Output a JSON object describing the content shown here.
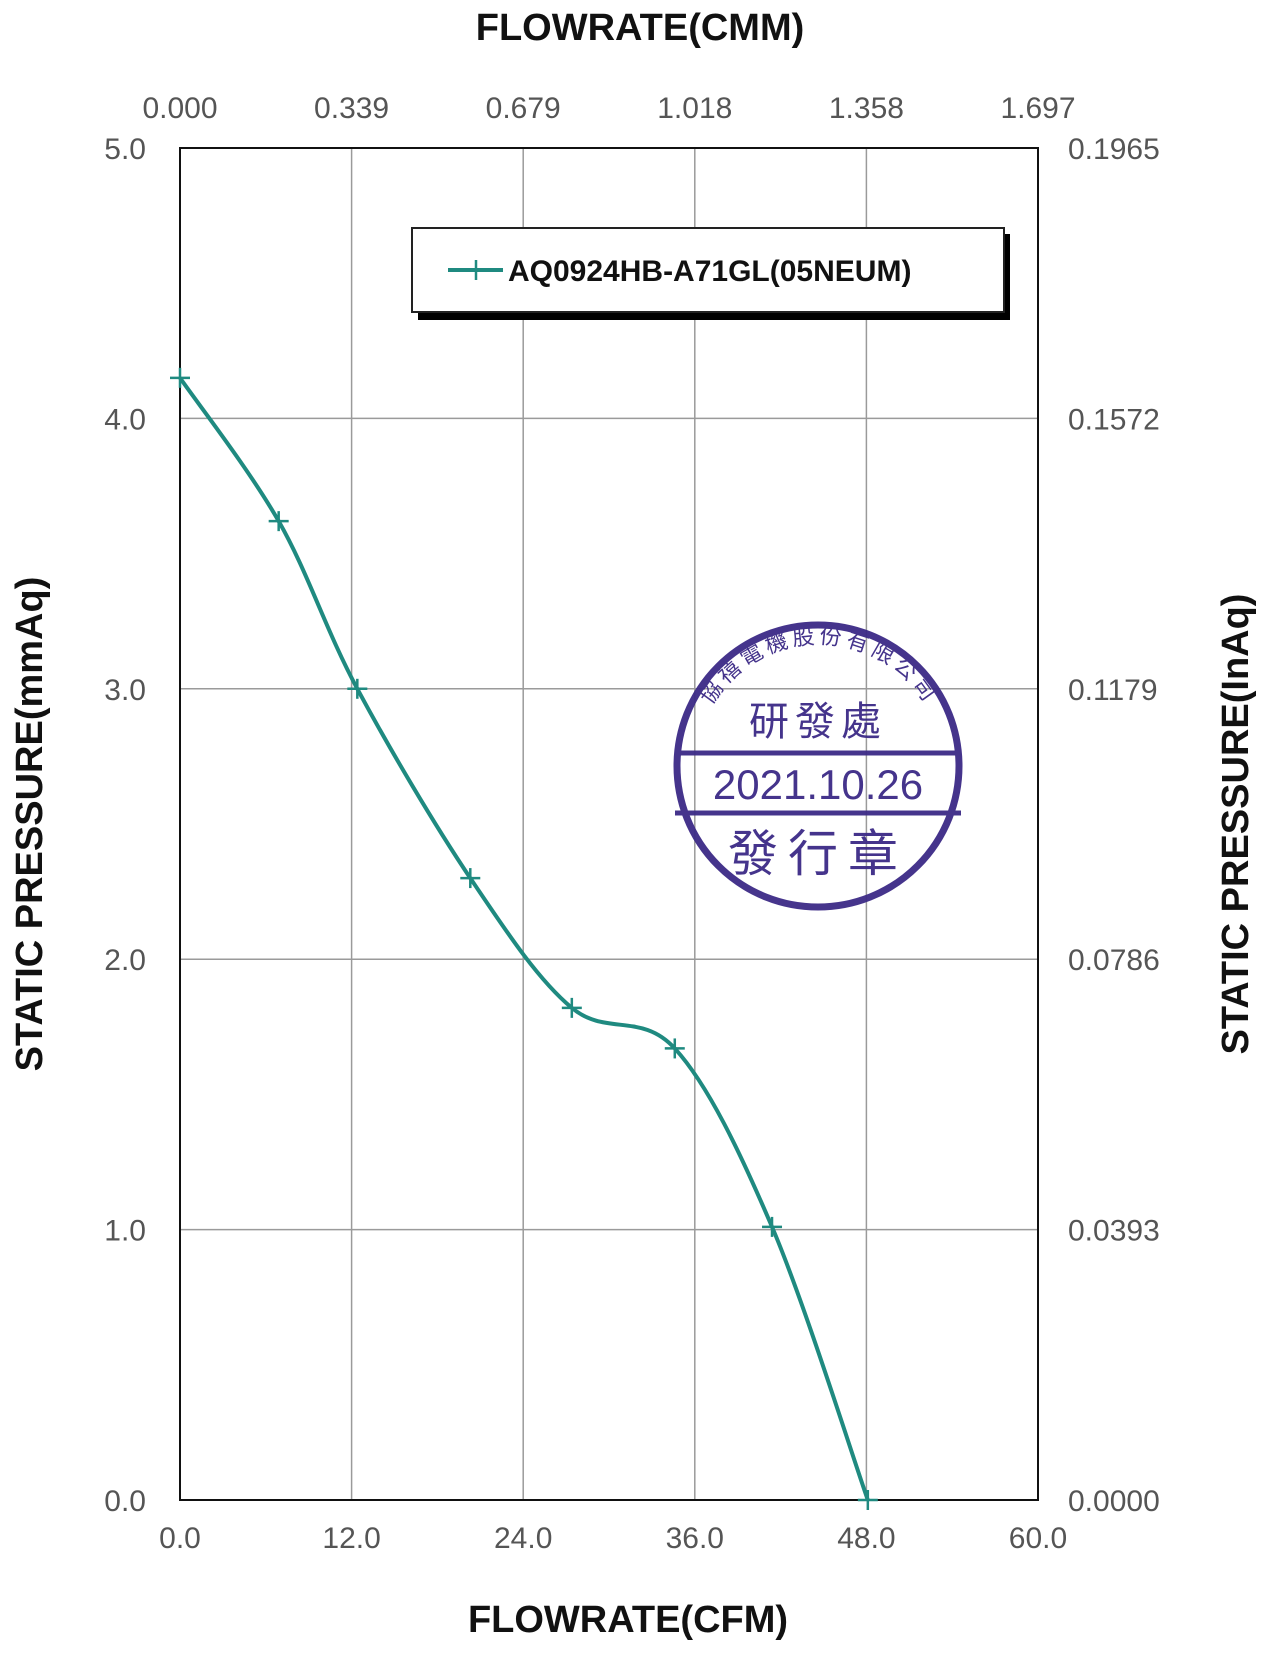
{
  "chart_data": {
    "type": "line",
    "x_axis_bottom": {
      "label": "FLOWRATE(CFM)",
      "range": [
        0,
        60
      ],
      "ticks": [
        "0.0",
        "12.0",
        "24.0",
        "36.0",
        "48.0",
        "60.0"
      ]
    },
    "x_axis_top": {
      "label": "FLOWRATE(CMM)",
      "ticks": [
        "0.000",
        "0.339",
        "0.679",
        "1.018",
        "1.358",
        "1.697"
      ]
    },
    "y_axis_left": {
      "label": "STATIC PRESSURE(mmAq)",
      "range": [
        0,
        5
      ],
      "ticks": [
        "0.0",
        "1.0",
        "2.0",
        "3.0",
        "4.0",
        "5.0"
      ]
    },
    "y_axis_right": {
      "label": "STATIC PRESSURE(InAq)",
      "ticks": [
        "0.0000",
        "0.0393",
        "0.0786",
        "0.1179",
        "0.1572",
        "0.1965"
      ]
    },
    "grid": true,
    "legend_position": "top-right",
    "series": [
      {
        "name": "AQ0924HB-A71GL(05NEUM)",
        "color": "#1f8a80",
        "x": [
          0.0,
          6.9,
          12.4,
          20.3,
          27.4,
          34.6,
          41.4,
          48.1
        ],
        "y": [
          4.15,
          3.62,
          3.0,
          2.3,
          1.82,
          1.67,
          1.01,
          0.0
        ]
      }
    ]
  },
  "stamp": {
    "company": "協禧電機股份有限公司",
    "department": "研發處",
    "date": "2021.10.26",
    "type": "發行章",
    "color": "#3c2a86"
  }
}
